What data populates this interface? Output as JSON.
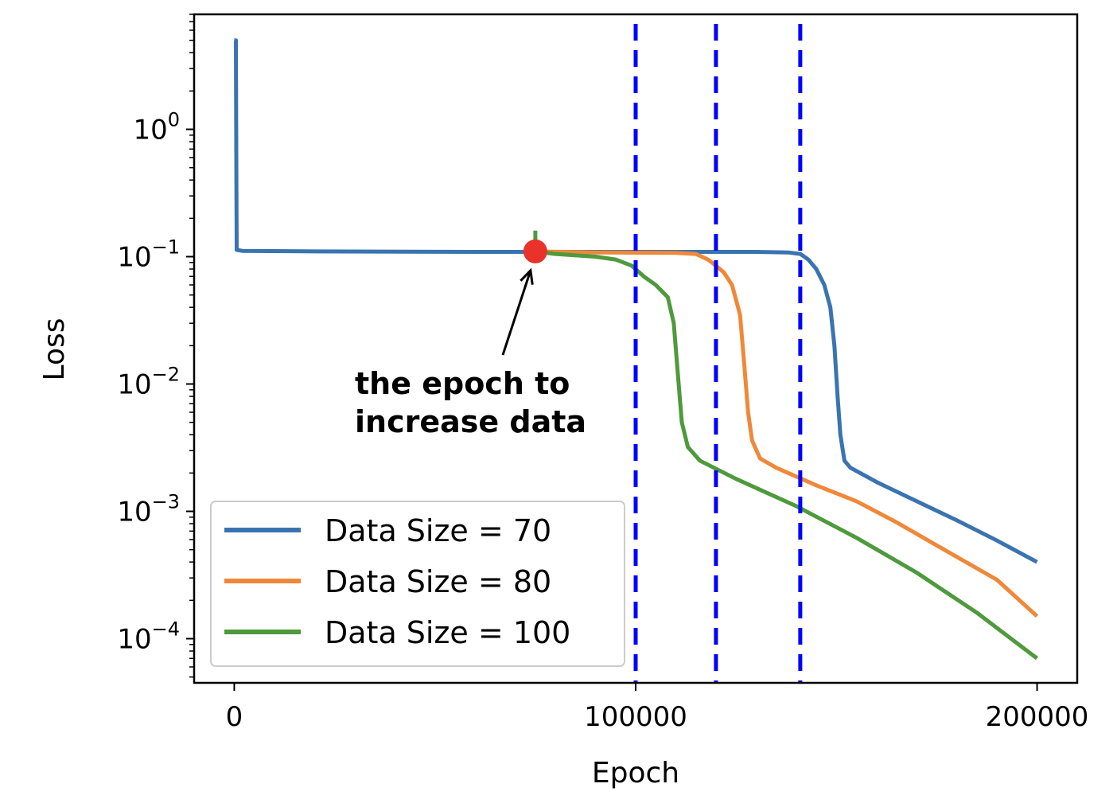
{
  "chart_data": {
    "type": "line",
    "xlabel": "Epoch",
    "ylabel": "Loss",
    "xscale": "linear",
    "yscale": "log",
    "xlim": [
      -10000,
      210000
    ],
    "ylim": [
      4.5e-05,
      8
    ],
    "xticks": [
      {
        "value": 0,
        "label": "0"
      },
      {
        "value": 100000,
        "label": "100000"
      },
      {
        "value": 200000,
        "label": "200000"
      }
    ],
    "yticks": [
      {
        "value": 1,
        "base": "10",
        "exp": "0"
      },
      {
        "value": 0.1,
        "base": "10",
        "exp": "−1"
      },
      {
        "value": 0.01,
        "base": "10",
        "exp": "−2"
      },
      {
        "value": 0.001,
        "base": "10",
        "exp": "−3"
      },
      {
        "value": 0.0001,
        "base": "10",
        "exp": "−4"
      }
    ],
    "grid": false,
    "legend_position": "lower-left",
    "series": [
      {
        "name": "Data Size = 70",
        "color": "#3a74b0",
        "points": [
          [
            0,
            5
          ],
          [
            400,
            5
          ],
          [
            500,
            0.6
          ],
          [
            600,
            0.113
          ],
          [
            2000,
            0.111
          ],
          [
            20000,
            0.11
          ],
          [
            60000,
            0.109
          ],
          [
            100000,
            0.109
          ],
          [
            130000,
            0.109
          ],
          [
            138000,
            0.108
          ],
          [
            141000,
            0.105
          ],
          [
            143000,
            0.095
          ],
          [
            145000,
            0.08
          ],
          [
            147000,
            0.06
          ],
          [
            148500,
            0.04
          ],
          [
            149500,
            0.02
          ],
          [
            150300,
            0.008
          ],
          [
            151000,
            0.004
          ],
          [
            152000,
            0.0025
          ],
          [
            153500,
            0.0022
          ],
          [
            160000,
            0.0017
          ],
          [
            170000,
            0.0012
          ],
          [
            180000,
            0.00085
          ],
          [
            190000,
            0.00059
          ],
          [
            200000,
            0.0004
          ]
        ]
      },
      {
        "name": "Data Size = 80",
        "color": "#f0883a",
        "points": [
          [
            75000,
            0.11
          ],
          [
            90000,
            0.108
          ],
          [
            110000,
            0.107
          ],
          [
            115000,
            0.105
          ],
          [
            118000,
            0.095
          ],
          [
            120000,
            0.085
          ],
          [
            122000,
            0.075
          ],
          [
            124000,
            0.06
          ],
          [
            126000,
            0.035
          ],
          [
            127000,
            0.015
          ],
          [
            128000,
            0.006
          ],
          [
            129000,
            0.0036
          ],
          [
            131000,
            0.0026
          ],
          [
            135000,
            0.0022
          ],
          [
            145000,
            0.0016
          ],
          [
            155000,
            0.0012
          ],
          [
            165000,
            0.00082
          ],
          [
            175000,
            0.00054
          ],
          [
            190000,
            0.00029
          ],
          [
            200000,
            0.00015
          ]
        ]
      },
      {
        "name": "Data Size = 100",
        "color": "#4e9a3c",
        "points": [
          [
            75000,
            0.16
          ],
          [
            75000,
            0.11
          ],
          [
            80000,
            0.105
          ],
          [
            90000,
            0.1
          ],
          [
            95000,
            0.095
          ],
          [
            99000,
            0.085
          ],
          [
            102000,
            0.07
          ],
          [
            105000,
            0.06
          ],
          [
            108000,
            0.048
          ],
          [
            109500,
            0.03
          ],
          [
            110500,
            0.012
          ],
          [
            111500,
            0.005
          ],
          [
            113000,
            0.0032
          ],
          [
            116000,
            0.0025
          ],
          [
            125000,
            0.0018
          ],
          [
            140000,
            0.0011
          ],
          [
            155000,
            0.00062
          ],
          [
            170000,
            0.00033
          ],
          [
            185000,
            0.00016
          ],
          [
            200000,
            7e-05
          ]
        ]
      }
    ],
    "vlines": [
      {
        "x": 100000,
        "color": "#0000ff",
        "style": "dashed"
      },
      {
        "x": 120000,
        "color": "#0000ff",
        "style": "dashed"
      },
      {
        "x": 141000,
        "color": "#0000ff",
        "style": "dashed"
      }
    ],
    "marker": {
      "x": 75000,
      "y": 0.11,
      "color": "#e8322a"
    },
    "annotation": {
      "lines": [
        "the epoch to",
        "increase data"
      ],
      "points_to": {
        "x": 75000,
        "y": 0.11
      }
    }
  }
}
